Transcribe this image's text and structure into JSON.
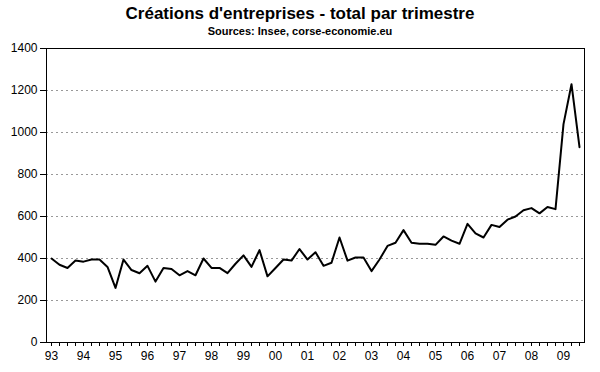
{
  "chart_data": {
    "type": "line",
    "title": "Créations d'entreprises - total par trimestre",
    "subtitle": "Sources: Insee, corse-economie.eu",
    "categories": [
      "93",
      null,
      null,
      null,
      "94",
      null,
      null,
      null,
      "95",
      null,
      null,
      null,
      "96",
      null,
      null,
      null,
      "97",
      null,
      null,
      null,
      "98",
      null,
      null,
      null,
      "99",
      null,
      null,
      null,
      "00",
      null,
      null,
      null,
      "01",
      null,
      null,
      null,
      "02",
      null,
      null,
      null,
      "03",
      null,
      null,
      null,
      "04",
      null,
      null,
      null,
      "05",
      null,
      null,
      null,
      "06",
      null,
      null,
      null,
      "07",
      null,
      null,
      null,
      "08",
      null,
      null,
      null,
      "09",
      null,
      null
    ],
    "values": [
      400,
      370,
      355,
      390,
      385,
      395,
      395,
      360,
      260,
      395,
      345,
      330,
      365,
      290,
      355,
      350,
      320,
      340,
      320,
      400,
      355,
      355,
      330,
      375,
      415,
      360,
      440,
      315,
      355,
      395,
      390,
      445,
      395,
      430,
      365,
      380,
      500,
      390,
      405,
      405,
      340,
      395,
      460,
      475,
      535,
      475,
      470,
      470,
      465,
      505,
      485,
      470,
      565,
      520,
      500,
      560,
      550,
      585,
      600,
      630,
      640,
      615,
      645,
      635,
      1040,
      1230,
      930
    ],
    "color": "#000000",
    "ylim": [
      0,
      1400
    ],
    "yticks": [
      0,
      200,
      400,
      600,
      800,
      1000,
      1200,
      1400
    ],
    "grid": true
  }
}
